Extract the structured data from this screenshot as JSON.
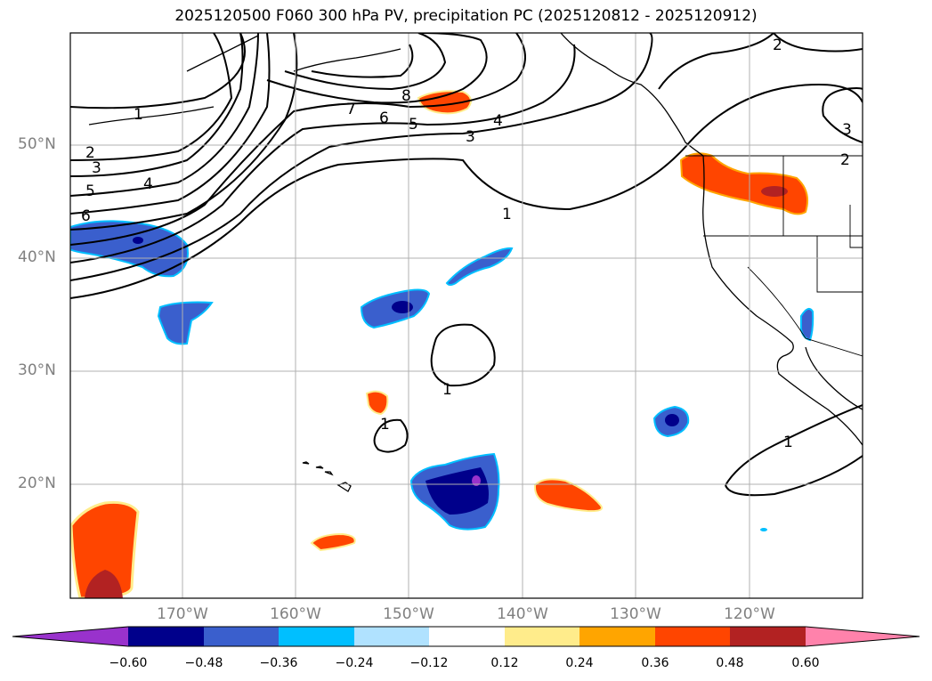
{
  "title": "2025120500 F060 300 hPa PV, precipitation PC (2025120812 - 2025120912)",
  "map": {
    "latitude_labels": [
      "50°N",
      "40°N",
      "30°N",
      "20°N"
    ],
    "longitude_labels": [
      "170°W",
      "160°W",
      "150°W",
      "140°W",
      "130°W",
      "120°W"
    ],
    "contour_labels": [
      "1",
      "2",
      "3",
      "4",
      "5",
      "6",
      "7",
      "8"
    ]
  },
  "colorbar": {
    "ticks": [
      "−0.60",
      "−0.48",
      "−0.36",
      "−0.24",
      "−0.12",
      "0.12",
      "0.24",
      "0.36",
      "0.48",
      "0.60"
    ],
    "colors": [
      "#9932cc",
      "#00008b",
      "#3a5fcd",
      "#00bfff",
      "#b0e2ff",
      "#ffffff",
      "#ffec8b",
      "#ffa500",
      "#ff4500",
      "#b22222",
      "#ff82ab"
    ]
  }
}
